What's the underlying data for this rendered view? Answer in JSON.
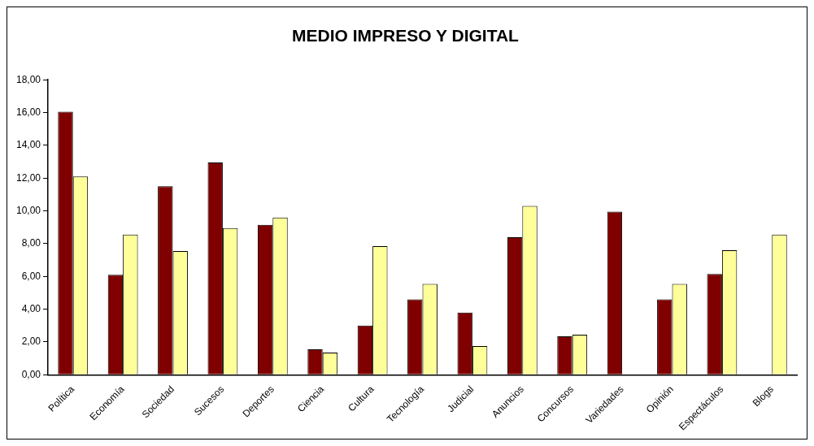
{
  "chart_data": {
    "type": "bar",
    "title": "MEDIO IMPRESO Y DIGITAL",
    "categories": [
      "Política",
      "Economía",
      "Sociedad",
      "Sucesos",
      "Deportes",
      "Ciencia",
      "Cultura",
      "Tecnología",
      "Judicial",
      "Anuncios",
      "Concursos",
      "Variedades",
      "Opinión",
      "Espectáculos",
      "Blogs"
    ],
    "series": [
      {
        "color": "#800000",
        "values": [
          16.05,
          6.1,
          11.5,
          12.95,
          9.15,
          1.55,
          3.0,
          4.6,
          3.8,
          8.4,
          2.35,
          9.95,
          4.6,
          6.15,
          null
        ]
      },
      {
        "color": "#ffff99",
        "values": [
          12.1,
          8.55,
          7.55,
          8.95,
          9.6,
          1.35,
          7.85,
          5.55,
          1.75,
          10.3,
          2.45,
          null,
          5.55,
          7.6,
          8.55
        ]
      }
    ],
    "ylim": [
      0,
      18
    ],
    "yticks": [
      {
        "value": 0,
        "label": "0,00"
      },
      {
        "value": 2,
        "label": "2,00"
      },
      {
        "value": 4,
        "label": "4,00"
      },
      {
        "value": 6,
        "label": "6,00"
      },
      {
        "value": 8,
        "label": "8,00"
      },
      {
        "value": 10,
        "label": "10,00"
      },
      {
        "value": 12,
        "label": "12,00"
      },
      {
        "value": 14,
        "label": "14,00"
      },
      {
        "value": 16,
        "label": "16,00"
      },
      {
        "value": 18,
        "label": "18,00"
      }
    ],
    "grid": false,
    "legend": false
  }
}
